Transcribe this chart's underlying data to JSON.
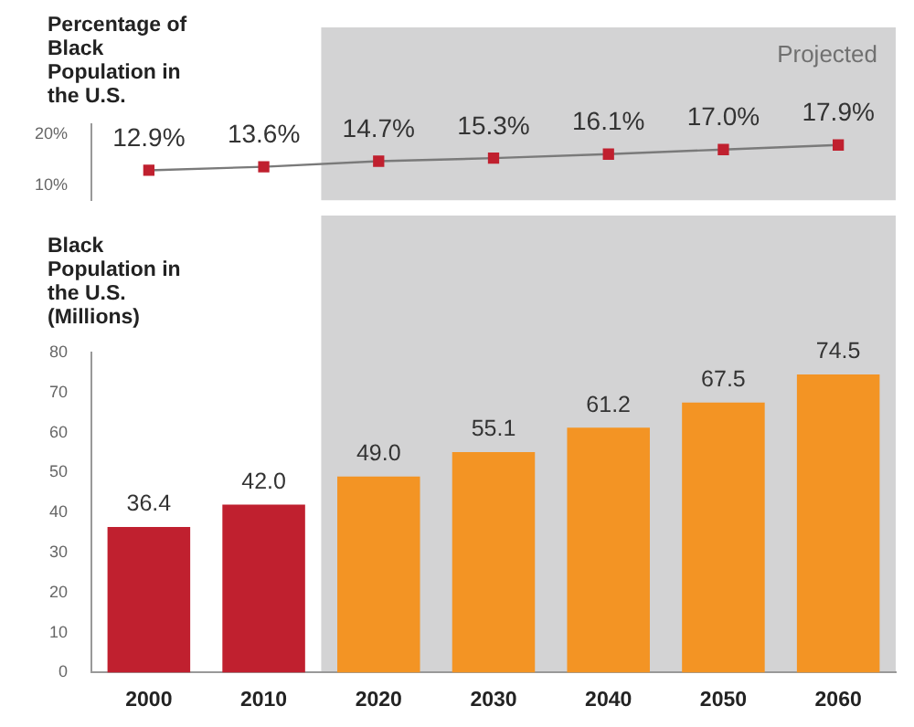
{
  "chart_data": [
    {
      "type": "line",
      "ylabel": "Percentage of Black Population in the U.S.",
      "categories": [
        "2000",
        "2010",
        "2020",
        "2030",
        "2040",
        "2050",
        "2060"
      ],
      "series": [
        {
          "color": "#c0202f",
          "values": [
            12.9,
            13.6,
            14.7,
            15.3,
            16.1,
            17.0,
            17.9
          ],
          "value_labels": [
            "12.9%",
            "13.6%",
            "14.7%",
            "15.3%",
            "16.1%",
            "17.0%",
            "17.9%"
          ]
        }
      ],
      "ylim": [
        7,
        22
      ],
      "yticks": [
        {
          "value": 10,
          "label": "10%"
        },
        {
          "value": 20,
          "label": "20%"
        }
      ],
      "grid": false,
      "legend": false,
      "tick_labels": "y",
      "marker": "square",
      "line_style": "solid",
      "bands": [
        {
          "axis": "x",
          "from": "2020",
          "to": "2060",
          "label": "Projected",
          "color": "#d3d3d4"
        }
      ]
    },
    {
      "type": "bar",
      "ylabel": "Black Population in the U.S. (Millions)",
      "categories": [
        "2000",
        "2010",
        "2020",
        "2030",
        "2040",
        "2050",
        "2060"
      ],
      "values": [
        36.4,
        42.0,
        49.0,
        55.1,
        61.2,
        67.5,
        74.5
      ],
      "value_labels": [
        "36.4",
        "42.0",
        "49.0",
        "55.1",
        "61.2",
        "67.5",
        "74.5"
      ],
      "colors": [
        "#c0202f",
        "#c0202f",
        "#f39424",
        "#f39424",
        "#f39424",
        "#f39424",
        "#f39424"
      ],
      "ylim": [
        0,
        80
      ],
      "yticks": [
        0,
        10,
        20,
        30,
        40,
        50,
        60,
        70,
        80
      ],
      "grid": false,
      "legend": false,
      "bands": [
        {
          "axis": "x",
          "from": "2020",
          "to": "2060",
          "color": "#d3d3d4"
        }
      ]
    }
  ]
}
